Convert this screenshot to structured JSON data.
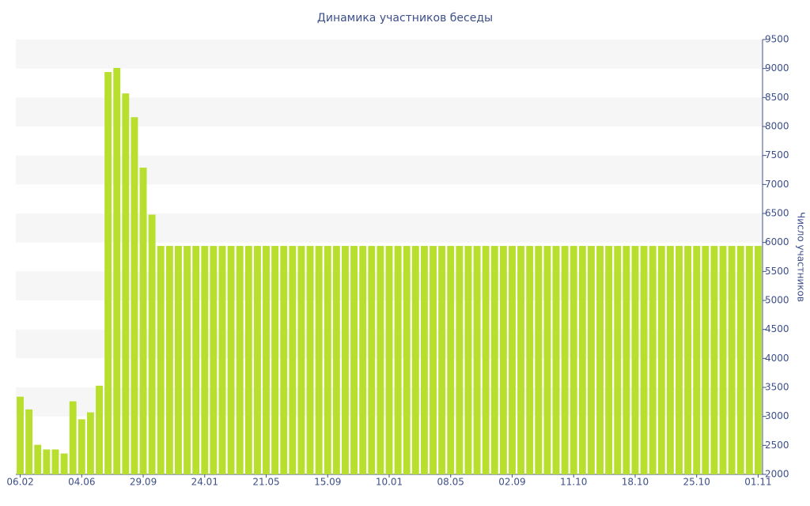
{
  "chart_data": {
    "type": "bar",
    "title": "Динамика участников беседы",
    "y_axis_label": "Число участников",
    "categories": [
      "06.02",
      null,
      null,
      null,
      null,
      null,
      null,
      "04.06",
      null,
      null,
      null,
      null,
      null,
      null,
      "29.09",
      null,
      null,
      null,
      null,
      null,
      null,
      "24.01",
      null,
      null,
      null,
      null,
      null,
      null,
      "21.05",
      null,
      null,
      null,
      null,
      null,
      null,
      "15.09",
      null,
      null,
      null,
      null,
      null,
      null,
      "10.01",
      null,
      null,
      null,
      null,
      null,
      null,
      "08.05",
      null,
      null,
      null,
      null,
      null,
      null,
      "02.09",
      null,
      null,
      null,
      null,
      null,
      null,
      "11.10",
      null,
      null,
      null,
      null,
      null,
      null,
      "18.10",
      null,
      null,
      null,
      null,
      null,
      null,
      "25.10",
      null,
      null,
      null,
      null,
      null,
      null,
      "01.11"
    ],
    "values": [
      3340,
      3120,
      2510,
      2430,
      2430,
      2360,
      3260,
      2950,
      3070,
      3530,
      8940,
      9010,
      8570,
      8160,
      7290,
      6480,
      5940,
      5940,
      5940,
      5940,
      5940,
      5940,
      5940,
      5940,
      5940,
      5940,
      5940,
      5940,
      5940,
      5940,
      5940,
      5940,
      5940,
      5940,
      5940,
      5940,
      5940,
      5940,
      5940,
      5940,
      5940,
      5940,
      5940,
      5940,
      5940,
      5940,
      5940,
      5940,
      5940,
      5940,
      5940,
      5940,
      5940,
      5940,
      5940,
      5940,
      5940,
      5940,
      5940,
      5940,
      5940,
      5940,
      5940,
      5940,
      5940,
      5940,
      5940,
      5940,
      5940,
      5940,
      5940,
      5940,
      5940,
      5940,
      5940,
      5940,
      5940,
      5940,
      5940,
      5940,
      5940,
      5940,
      5940,
      5940,
      5940
    ],
    "color": "#b8de2e",
    "ylim": [
      2000,
      9500
    ],
    "yticks": [
      2000,
      2500,
      3000,
      3500,
      4000,
      4500,
      5000,
      5500,
      6000,
      6500,
      7000,
      7500,
      8000,
      8500,
      9000,
      9500
    ],
    "y_axis_side": "right",
    "grid": "bands"
  }
}
